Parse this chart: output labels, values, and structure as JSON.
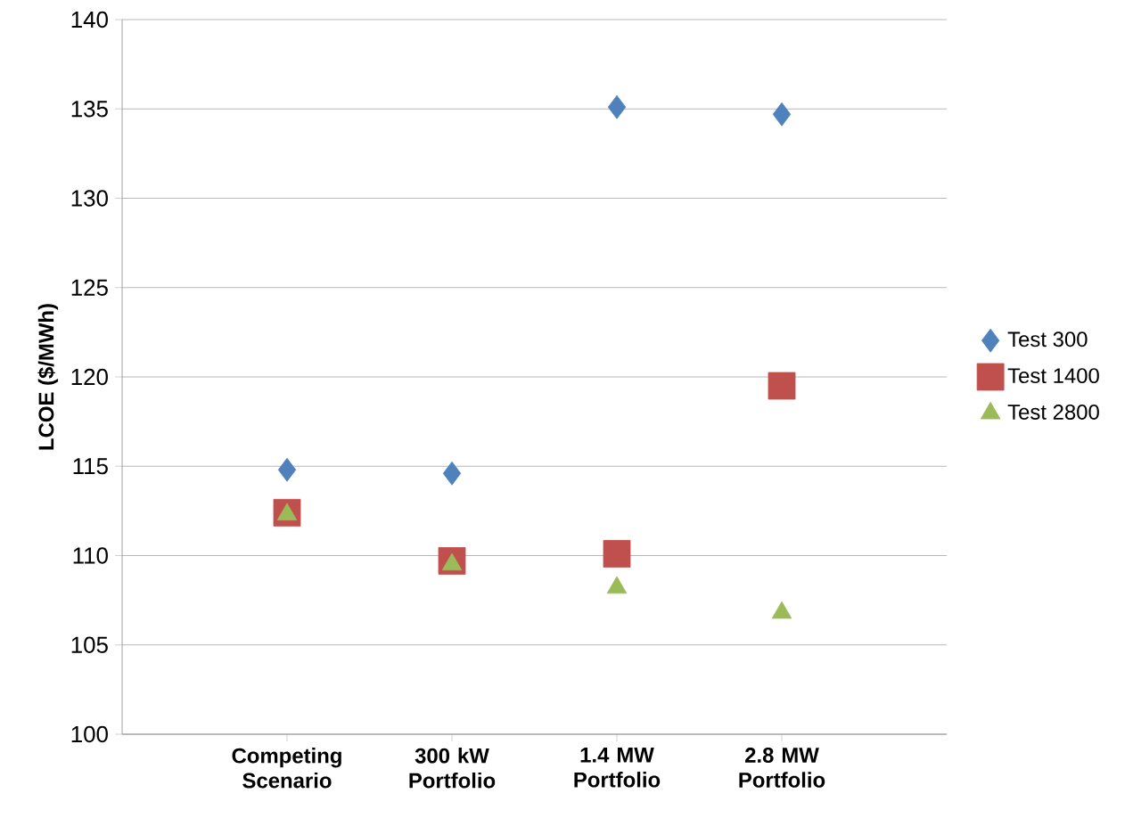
{
  "chart_data": {
    "type": "scatter",
    "ylabel": "LCOE ($/MWh)",
    "categories": [
      "Competing Scenario",
      "300 kW Portfolio",
      "1.4 MW Portfolio",
      "2.8 MW Portfolio"
    ],
    "series": [
      {
        "name": "Test 300",
        "color": "#4f81bd",
        "marker": "diamond",
        "values": [
          114.8,
          114.6,
          135.1,
          134.7
        ]
      },
      {
        "name": "Test 1400",
        "color": "#c0504d",
        "marker": "square",
        "values": [
          112.4,
          109.7,
          110.1,
          119.5
        ]
      },
      {
        "name": "Test 2800",
        "color": "#9bbb59",
        "marker": "triangle",
        "values": [
          112.3,
          109.5,
          108.2,
          106.8
        ]
      }
    ],
    "ylim": [
      100,
      140
    ],
    "yticks": [
      100,
      105,
      110,
      115,
      120,
      125,
      130,
      135,
      140
    ],
    "grid": "y",
    "legend": "right"
  }
}
